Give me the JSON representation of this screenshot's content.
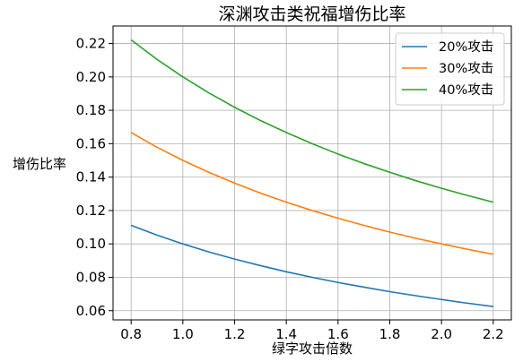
{
  "chart_data": {
    "type": "line",
    "title": "深渊攻击类祝福增伤比率",
    "xlabel": "绿字攻击倍数",
    "ylabel": "增伤比率",
    "xlim": [
      0.73,
      2.27
    ],
    "ylim": [
      0.0545,
      0.2305
    ],
    "xticks": [
      0.8,
      1.0,
      1.2,
      1.4,
      1.6,
      1.8,
      2.0,
      2.2
    ],
    "xtick_labels": [
      "0.8",
      "1.0",
      "1.2",
      "1.4",
      "1.6",
      "1.8",
      "2.0",
      "2.2"
    ],
    "yticks": [
      0.06,
      0.08,
      0.1,
      0.12,
      0.14,
      0.16,
      0.18,
      0.2,
      0.22
    ],
    "ytick_labels": [
      "0.06",
      "0.08",
      "0.10",
      "0.12",
      "0.14",
      "0.16",
      "0.18",
      "0.20",
      "0.22"
    ],
    "grid": true,
    "legend_position": "top-right",
    "x": [
      0.8,
      0.9,
      1.0,
      1.1,
      1.2,
      1.3,
      1.4,
      1.5,
      1.6,
      1.7,
      1.8,
      1.9,
      2.0,
      2.1,
      2.2
    ],
    "series": [
      {
        "name": "20%攻击",
        "color": "#1f77b4",
        "values": [
          0.1111,
          0.1053,
          0.1,
          0.0952,
          0.0909,
          0.087,
          0.0833,
          0.08,
          0.0769,
          0.0741,
          0.0714,
          0.069,
          0.0667,
          0.0645,
          0.0625
        ]
      },
      {
        "name": "30%攻击",
        "color": "#ff7f0e",
        "values": [
          0.1667,
          0.1579,
          0.15,
          0.1429,
          0.1364,
          0.1304,
          0.125,
          0.12,
          0.1154,
          0.1111,
          0.1071,
          0.1034,
          0.1,
          0.0968,
          0.0938
        ]
      },
      {
        "name": "40%攻击",
        "color": "#2ca02c",
        "values": [
          0.2222,
          0.2105,
          0.2,
          0.1905,
          0.1818,
          0.1739,
          0.1667,
          0.16,
          0.1538,
          0.1481,
          0.1429,
          0.1379,
          0.1333,
          0.129,
          0.125
        ]
      }
    ]
  }
}
